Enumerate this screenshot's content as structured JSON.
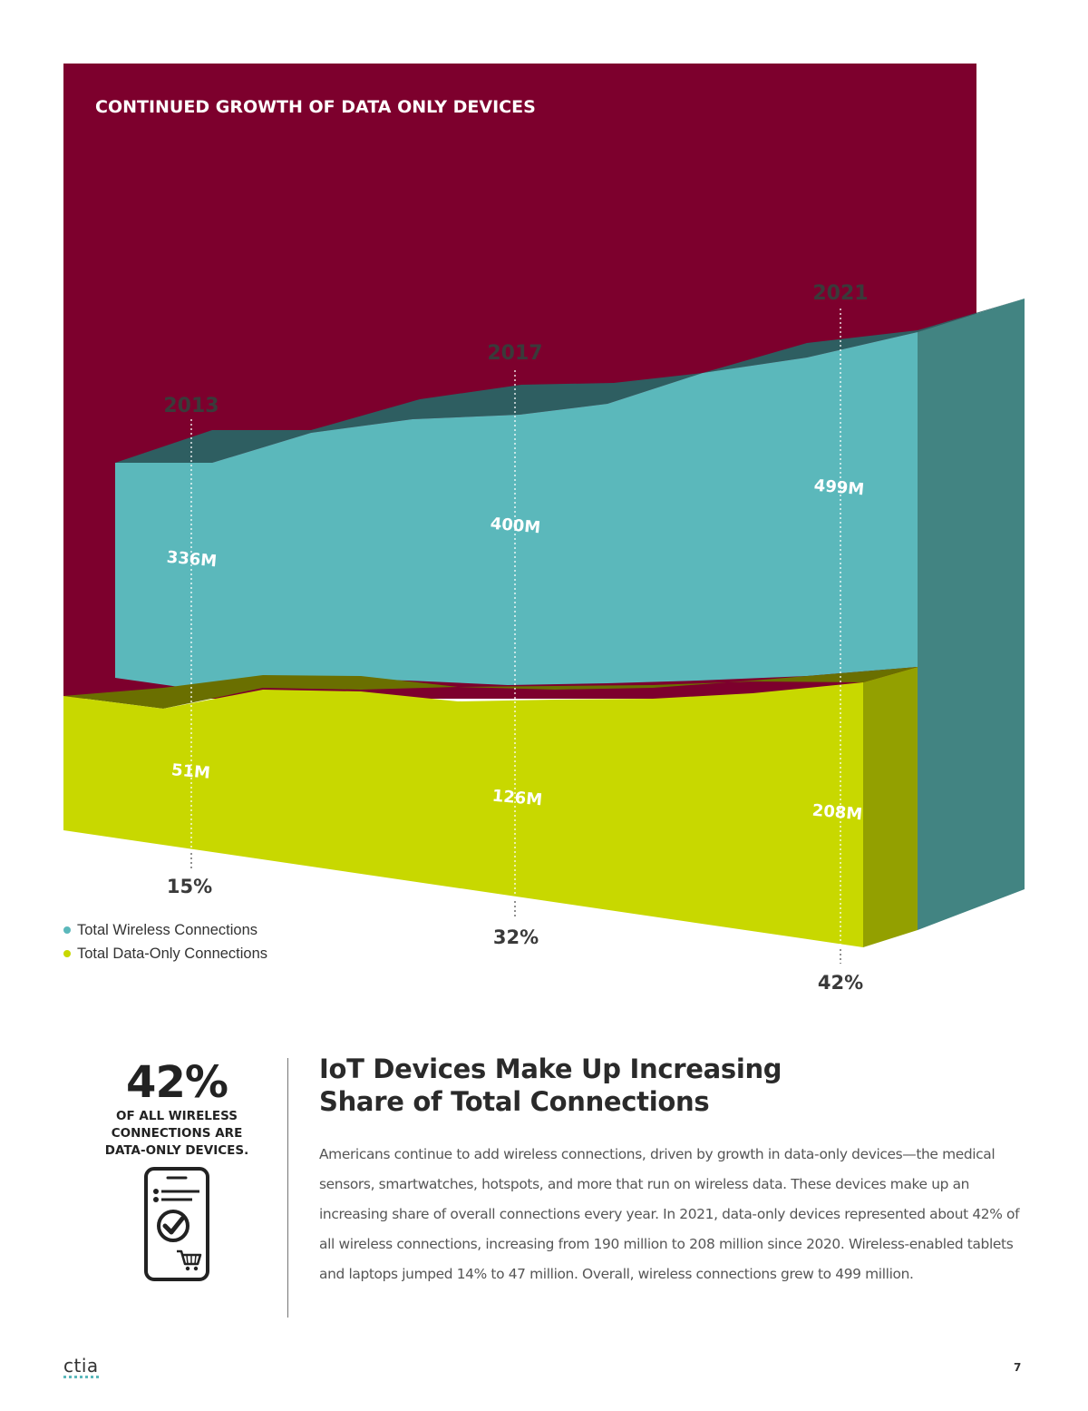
{
  "chart_data": {
    "type": "area",
    "title": "CONTINUED GROWTH OF DATA ONLY DEVICES",
    "categories": [
      "2013",
      "2017",
      "2021"
    ],
    "series": [
      {
        "name": "Total Wireless Connections",
        "values": [
          336,
          400,
          499
        ],
        "labels": [
          "336M",
          "400M",
          "499M"
        ],
        "color": "#5bb8bb"
      },
      {
        "name": "Total Data-Only Connections",
        "values": [
          51,
          126,
          208
        ],
        "labels": [
          "51M",
          "126M",
          "208M"
        ],
        "color": "#c8d800"
      }
    ],
    "share_labels": [
      "15%",
      "32%",
      "42%"
    ],
    "unit": "millions"
  },
  "legend": {
    "wireless": {
      "label": "Total Wireless Connections",
      "color": "#5bb8bb"
    },
    "data_only": {
      "label": "Total Data-Only Connections",
      "color": "#c8d800"
    }
  },
  "stat": {
    "value": "42%",
    "caption_lines": [
      "OF ALL WIRELESS",
      "CONNECTIONS ARE",
      "DATA-ONLY DEVICES."
    ],
    "icon": "phone-checkmark-cart-icon"
  },
  "article": {
    "headline": "IoT Devices Make Up Increasing\nShare of Total Connections",
    "body": "Americans continue to add wireless connections, driven by growth in data-only devices—the medical sensors, smartwatches, hotspots, and more that run on wireless data. These devices make up an increasing share of overall connections every year. In 2021, data-only devices represented about 42% of all wireless connections, increasing from 190 million to 208 million since 2020. Wireless-enabled tablets and laptops jumped 14% to 47 million. Overall, wireless connections grew to 499 million."
  },
  "footer": {
    "logo": "ctia",
    "page_number": "7"
  },
  "colors": {
    "background_panel": "#7d002d",
    "teal": "#5bb8bb",
    "teal_top": "#2e5e61",
    "teal_side": "#428482",
    "lime": "#c8d800",
    "lime_top": "#6a6f00",
    "lime_side": "#93a000"
  }
}
